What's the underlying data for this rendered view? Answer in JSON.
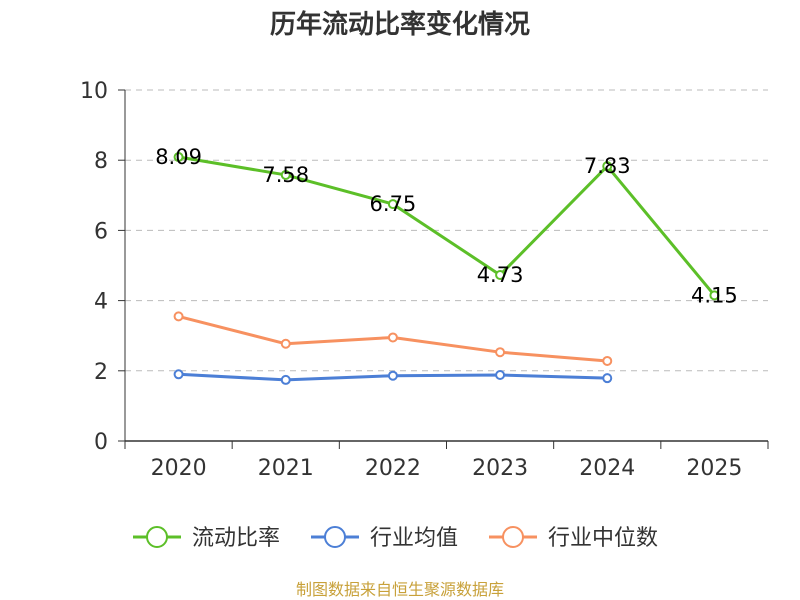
{
  "chart_data": {
    "type": "line",
    "title": "历年流动比率变化情况",
    "categories": [
      "2020",
      "2021",
      "2022",
      "2023",
      "2024",
      "2025"
    ],
    "y_ticks": [
      "0",
      "2",
      "4",
      "6",
      "8",
      "10"
    ],
    "ylim": [
      0,
      10
    ],
    "grid": true,
    "legend_position": "bottom",
    "series": [
      {
        "name": "流动比率",
        "color": "#5cbf28",
        "values": [
          8.09,
          7.58,
          6.75,
          4.73,
          7.83,
          4.15
        ],
        "labels": [
          "8.09",
          "7.58",
          "6.75",
          "4.73",
          "7.83",
          "4.15"
        ]
      },
      {
        "name": "行业均值",
        "color": "#4c7fd6",
        "values": [
          1.9,
          1.74,
          1.86,
          1.88,
          1.79,
          null
        ]
      },
      {
        "name": "行业中位数",
        "color": "#f79160",
        "values": [
          3.55,
          2.77,
          2.95,
          2.53,
          2.28,
          null
        ]
      }
    ],
    "source": "制图数据来自恒生聚源数据库",
    "source_color": "#c8a13a",
    "axis_color": "#333333",
    "grid_color": "#bbbbbb"
  }
}
